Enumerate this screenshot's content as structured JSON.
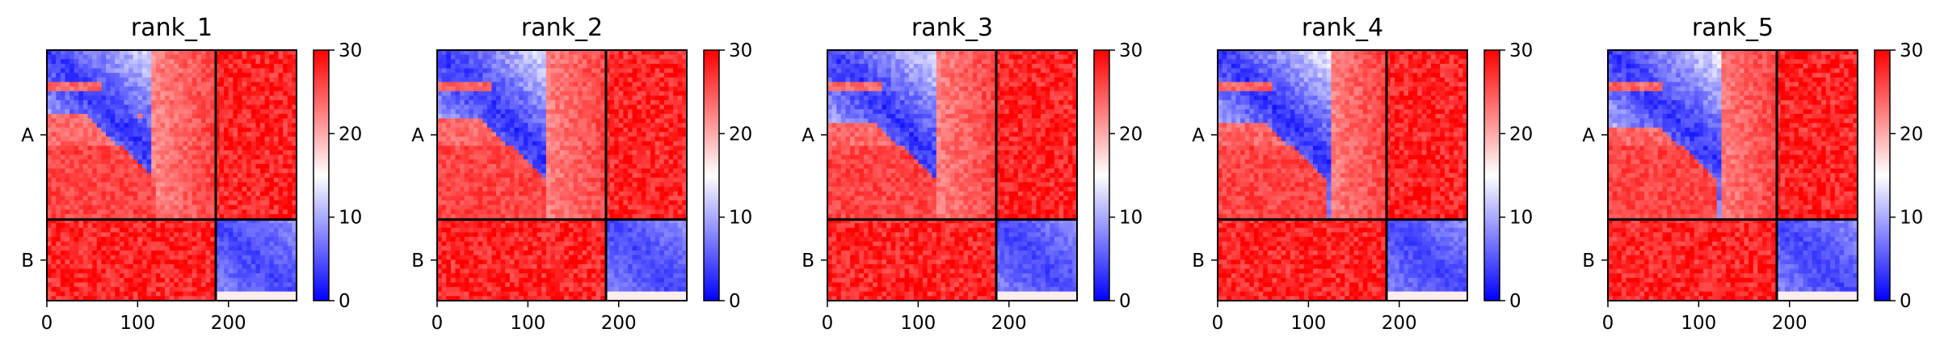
{
  "chart_data": {
    "type": "heatmap",
    "panels": [
      {
        "title": "rank_1",
        "variant": 0
      },
      {
        "title": "rank_2",
        "variant": 1
      },
      {
        "title": "rank_3",
        "variant": 2
      },
      {
        "title": "rank_4",
        "variant": 3
      },
      {
        "title": "rank_5",
        "variant": 4
      }
    ],
    "chains": [
      {
        "label": "A",
        "start": 0,
        "end": 186
      },
      {
        "label": "B",
        "start": 186,
        "end": 275
      }
    ],
    "x_ticks": [
      0,
      100,
      200
    ],
    "xlim": [
      0,
      275
    ],
    "colorbar": {
      "min": 0,
      "max": 30,
      "ticks": [
        0,
        10,
        20,
        30
      ]
    },
    "colormap": {
      "low": "#0000ff",
      "mid": "#ffffff",
      "high": "#ff0000"
    },
    "block_means": {
      "intra_chain": 5,
      "inter_chain": 28
    }
  }
}
